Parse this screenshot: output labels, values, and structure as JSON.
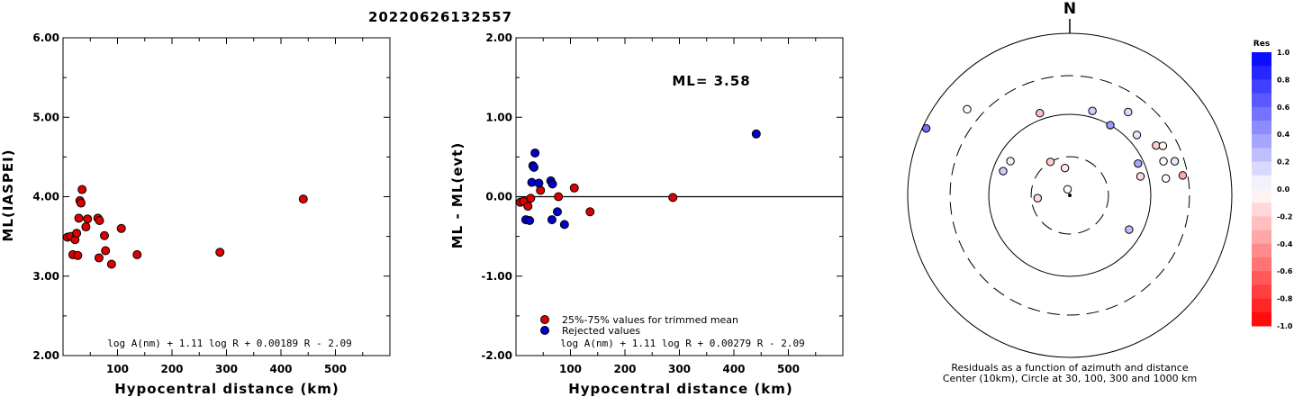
{
  "title": "20220626132557",
  "chart_data": [
    {
      "type": "scatter",
      "xlabel": "Hypocentral distance (km)",
      "ylabel": "ML(IASPEI)",
      "xlim": [
        0,
        600
      ],
      "ylim": [
        2.0,
        6.0
      ],
      "xticks": [
        "100",
        "200",
        "300",
        "400",
        "500"
      ],
      "yticks": [
        "2.00",
        "3.00",
        "4.00",
        "5.00",
        "6.00"
      ],
      "formula": "log A(nm) + 1.11 log R + 0.00189 R - 2.09",
      "points": [
        {
          "x": 8,
          "y": 3.49
        },
        {
          "x": 14,
          "y": 3.5
        },
        {
          "x": 18,
          "y": 3.27
        },
        {
          "x": 22,
          "y": 3.46
        },
        {
          "x": 25,
          "y": 3.54
        },
        {
          "x": 27,
          "y": 3.26
        },
        {
          "x": 29,
          "y": 3.73
        },
        {
          "x": 31,
          "y": 3.95
        },
        {
          "x": 33,
          "y": 3.92
        },
        {
          "x": 35,
          "y": 4.09
        },
        {
          "x": 42,
          "y": 3.62
        },
        {
          "x": 45,
          "y": 3.72
        },
        {
          "x": 64,
          "y": 3.73
        },
        {
          "x": 66,
          "y": 3.23
        },
        {
          "x": 67,
          "y": 3.7
        },
        {
          "x": 76,
          "y": 3.51
        },
        {
          "x": 78,
          "y": 3.32
        },
        {
          "x": 89,
          "y": 3.15
        },
        {
          "x": 107,
          "y": 3.6
        },
        {
          "x": 136,
          "y": 3.27
        },
        {
          "x": 288,
          "y": 3.3
        },
        {
          "x": 441,
          "y": 3.97
        }
      ]
    },
    {
      "type": "scatter",
      "xlabel": "Hypocentral distance (km)",
      "ylabel": "ML - ML(evt)",
      "xlim": [
        0,
        600
      ],
      "ylim": [
        -2.0,
        2.0
      ],
      "xticks": [
        "100",
        "200",
        "300",
        "400",
        "500"
      ],
      "yticks": [
        "-2.00",
        "-1.00",
        "0.00",
        "1.00",
        "2.00"
      ],
      "annotation": "ML= 3.58",
      "formula": "log A(nm) + 1.11 log R + 0.00279 R - 2.09",
      "legend": [
        "25%-75% values for trimmed mean",
        "Rejected values"
      ],
      "series": [
        {
          "name": "25%-75% values for trimmed mean",
          "color": "#dd0000",
          "points": [
            {
              "x": 8,
              "y": -0.07
            },
            {
              "x": 14,
              "y": -0.06
            },
            {
              "x": 22,
              "y": -0.12
            },
            {
              "x": 27,
              "y": -0.02
            },
            {
              "x": 45,
              "y": 0.08
            },
            {
              "x": 78,
              "y": 0.0
            },
            {
              "x": 107,
              "y": 0.11
            },
            {
              "x": 136,
              "y": -0.19
            },
            {
              "x": 288,
              "y": -0.01
            }
          ]
        },
        {
          "name": "Rejected values",
          "color": "#0000cc",
          "points": [
            {
              "x": 18,
              "y": -0.29
            },
            {
              "x": 25,
              "y": -0.3
            },
            {
              "x": 29,
              "y": 0.18
            },
            {
              "x": 31,
              "y": 0.39
            },
            {
              "x": 33,
              "y": 0.37
            },
            {
              "x": 35,
              "y": 0.55
            },
            {
              "x": 42,
              "y": 0.17
            },
            {
              "x": 64,
              "y": 0.2
            },
            {
              "x": 66,
              "y": -0.29
            },
            {
              "x": 67,
              "y": 0.16
            },
            {
              "x": 76,
              "y": -0.19
            },
            {
              "x": 89,
              "y": -0.35
            },
            {
              "x": 441,
              "y": 0.79
            }
          ]
        }
      ]
    },
    {
      "type": "scatter",
      "subtype": "polar residual map",
      "north_label": "N",
      "caption_line1": "Residuals as a function of azimuth and distance",
      "caption_line2": "Center (10km), Circle at 30, 100, 300 and 1000 km",
      "stations": [
        {
          "azimuth": 295,
          "distance_km": 900,
          "res": 0.55
        },
        {
          "azimuth": 310,
          "distance_km": 450,
          "res": 0.0
        },
        {
          "azimuth": 340,
          "distance_km": 120,
          "res": -0.25
        },
        {
          "azimuth": 15,
          "distance_km": 120,
          "res": 0.2
        },
        {
          "azimuth": 30,
          "distance_km": 100,
          "res": 0.4
        },
        {
          "azimuth": 35,
          "distance_km": 180,
          "res": 0.15
        },
        {
          "azimuth": 48,
          "distance_km": 130,
          "res": 0.1
        },
        {
          "azimuth": 60,
          "distance_km": 170,
          "res": -0.2
        },
        {
          "azimuth": 62,
          "distance_km": 200,
          "res": 0.0
        },
        {
          "azimuth": 70,
          "distance_km": 170,
          "res": 0.0
        },
        {
          "azimuth": 72,
          "distance_km": 230,
          "res": 0.1
        },
        {
          "azimuth": 80,
          "distance_km": 260,
          "res": -0.35
        },
        {
          "azimuth": 80,
          "distance_km": 160,
          "res": 0.0
        },
        {
          "azimuth": 300,
          "distance_km": 70,
          "res": 0.05
        },
        {
          "azimuth": 290,
          "distance_km": 75,
          "res": 0.2
        },
        {
          "azimuth": 330,
          "distance_km": 30,
          "res": -0.2
        },
        {
          "azimuth": 350,
          "distance_km": 22,
          "res": -0.1
        },
        {
          "azimuth": 340,
          "distance_km": 12,
          "res": 0.0
        },
        {
          "azimuth": 75,
          "distance_km": 80,
          "res": -0.15
        },
        {
          "azimuth": 65,
          "distance_km": 85,
          "res": 0.35
        },
        {
          "azimuth": 120,
          "distance_km": 70,
          "res": 0.25
        },
        {
          "azimuth": 265,
          "distance_km": 25,
          "res": -0.15
        }
      ],
      "colorbar": {
        "label": "Res",
        "ticks": [
          "1.0",
          "0.8",
          "0.6",
          "0.4",
          "0.2",
          "0.0",
          "-0.2",
          "-0.4",
          "-0.6",
          "-0.8",
          "-1.0"
        ]
      }
    }
  ]
}
